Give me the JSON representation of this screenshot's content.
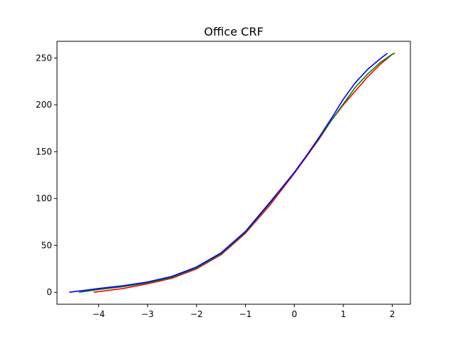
{
  "chart_data": {
    "type": "line",
    "title": "Office CRF",
    "xlabel": "",
    "ylabel": "",
    "xlim": [
      -4.85,
      2.37
    ],
    "ylim": [
      -12.75,
      267.75
    ],
    "xticks": [
      -4,
      -3,
      -2,
      -1,
      0,
      1,
      2
    ],
    "yticks": [
      0,
      50,
      100,
      150,
      200,
      250
    ],
    "xtick_labels": [
      "−4",
      "−3",
      "−2",
      "−1",
      "0",
      "1",
      "2"
    ],
    "ytick_labels": [
      "0",
      "50",
      "100",
      "150",
      "200",
      "250"
    ],
    "grid": false,
    "legend": false,
    "series": [
      {
        "color": "#ff0000",
        "points": [
          [
            -4.1,
            0
          ],
          [
            -3.5,
            4
          ],
          [
            -3.0,
            9
          ],
          [
            -2.5,
            15
          ],
          [
            -2.0,
            25
          ],
          [
            -1.5,
            40
          ],
          [
            -1.0,
            63
          ],
          [
            -0.5,
            93
          ],
          [
            0.0,
            127
          ],
          [
            0.25,
            145
          ],
          [
            0.5,
            163
          ],
          [
            0.75,
            183
          ],
          [
            1.0,
            200
          ],
          [
            1.25,
            215
          ],
          [
            1.5,
            230
          ],
          [
            1.75,
            243
          ],
          [
            2.0,
            254
          ],
          [
            2.05,
            255
          ]
        ]
      },
      {
        "color": "#008000",
        "points": [
          [
            -4.4,
            0
          ],
          [
            -4.0,
            3
          ],
          [
            -3.5,
            6
          ],
          [
            -3.0,
            10
          ],
          [
            -2.5,
            16
          ],
          [
            -2.0,
            26
          ],
          [
            -1.5,
            41
          ],
          [
            -1.0,
            64
          ],
          [
            -0.5,
            95
          ],
          [
            0.0,
            128
          ],
          [
            0.25,
            146
          ],
          [
            0.5,
            164
          ],
          [
            0.75,
            183
          ],
          [
            1.0,
            201
          ],
          [
            1.25,
            219
          ],
          [
            1.5,
            233
          ],
          [
            1.75,
            245
          ],
          [
            2.0,
            254
          ],
          [
            2.05,
            255
          ]
        ]
      },
      {
        "color": "#0000ff",
        "points": [
          [
            -4.6,
            0
          ],
          [
            -4.0,
            4
          ],
          [
            -3.5,
            7
          ],
          [
            -3.0,
            11
          ],
          [
            -2.5,
            17
          ],
          [
            -2.0,
            27
          ],
          [
            -1.5,
            42
          ],
          [
            -1.0,
            65
          ],
          [
            -0.5,
            96
          ],
          [
            0.0,
            128
          ],
          [
            0.25,
            146
          ],
          [
            0.5,
            165
          ],
          [
            0.75,
            185
          ],
          [
            1.0,
            206
          ],
          [
            1.25,
            224
          ],
          [
            1.5,
            238
          ],
          [
            1.75,
            249
          ],
          [
            1.9,
            255
          ]
        ]
      }
    ]
  }
}
